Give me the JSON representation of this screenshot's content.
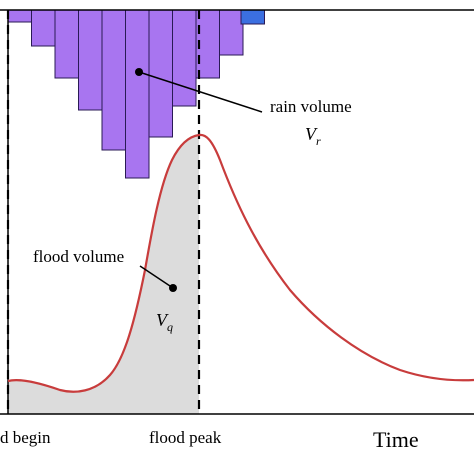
{
  "labels": {
    "rain_volume": "rain volume",
    "rain_symbol": "V",
    "rain_subscript": "r",
    "flood_volume": "flood volume",
    "flood_symbol": "V",
    "flood_subscript": "q",
    "flood_begin": "d begin",
    "flood_peak": "flood peak",
    "time_axis": "Time"
  },
  "colors": {
    "rain_bar": "#a875f0",
    "rain_bar_overflow": "#3b6fe0",
    "hydrograph": "#c83c3c",
    "flood_fill": "#dcdcdc"
  },
  "chart_data": {
    "type": "diagram",
    "hyetograph_bar_depths": [
      12,
      36,
      68,
      100,
      140,
      168,
      127,
      96,
      68,
      45,
      14
    ],
    "hyetograph_last_bar_color": "overflow",
    "hydrograph_shape": "rising limb to peak at flood peak marker, then recession"
  }
}
